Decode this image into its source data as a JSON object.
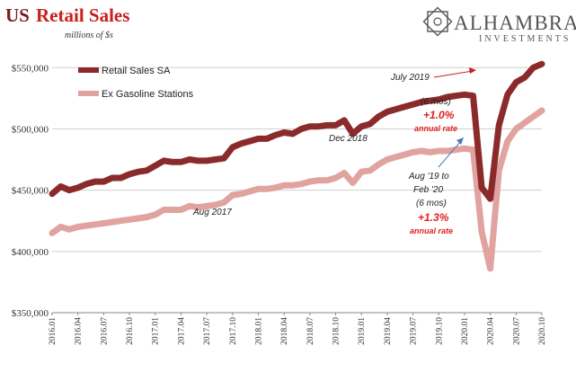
{
  "header": {
    "title_prefix": "US",
    "title_main": "Retail Sales",
    "units": "millions of $s"
  },
  "logo": {
    "name": "ALHAMBRA",
    "sub": "INVESTMENTS",
    "icon": "geometric-star-icon"
  },
  "colors": {
    "series1": "#8b2a2a",
    "series2": "#e0a3a0",
    "annotation_red": "#e0201c",
    "grid": "#cfcfcf"
  },
  "annotations": {
    "july2019": "July 2019",
    "six_mos_1": "(6 mos)",
    "rate1": "+1.0%",
    "annual_rate_1": "annual rate",
    "dec2018": "Dec 2018",
    "aug2017": "Aug 2017",
    "aug19_line1": "Aug '19 to",
    "aug19_line2": "Feb '20",
    "six_mos_2": "(6 mos)",
    "rate2": "+1.3%",
    "annual_rate_2": "annual rate"
  },
  "chart_data": {
    "type": "line",
    "title": "US Retail Sales",
    "ylabel": "millions of $s",
    "ylim": [
      350000,
      570000
    ],
    "yticks": [
      350000,
      400000,
      450000,
      500000,
      550000
    ],
    "ytick_labels": [
      "$350,000",
      "$400,000",
      "$450,000",
      "$500,000",
      "$550,000"
    ],
    "xtick_labels": [
      "2016.01",
      "2016.04",
      "2016.07",
      "2016.10",
      "2017.01",
      "2017.04",
      "2017.07",
      "2017.10",
      "2018.01",
      "2018.04",
      "2018.07",
      "2018.10",
      "2019.01",
      "2019.04",
      "2019.07",
      "2019.10",
      "2020.01",
      "2020.04",
      "2020.07",
      "2020.10"
    ],
    "legend_position": "top-left",
    "grid": true,
    "x": [
      "2016.01",
      "2016.02",
      "2016.03",
      "2016.04",
      "2016.05",
      "2016.06",
      "2016.07",
      "2016.08",
      "2016.09",
      "2016.10",
      "2016.11",
      "2016.12",
      "2017.01",
      "2017.02",
      "2017.03",
      "2017.04",
      "2017.05",
      "2017.06",
      "2017.07",
      "2017.08",
      "2017.09",
      "2017.10",
      "2017.11",
      "2017.12",
      "2018.01",
      "2018.02",
      "2018.03",
      "2018.04",
      "2018.05",
      "2018.06",
      "2018.07",
      "2018.08",
      "2018.09",
      "2018.10",
      "2018.11",
      "2018.12",
      "2019.01",
      "2019.02",
      "2019.03",
      "2019.04",
      "2019.05",
      "2019.06",
      "2019.07",
      "2019.08",
      "2019.09",
      "2019.10",
      "2019.11",
      "2019.12",
      "2020.01",
      "2020.02",
      "2020.03",
      "2020.04",
      "2020.05",
      "2020.06",
      "2020.07",
      "2020.08",
      "2020.09",
      "2020.10"
    ],
    "series": [
      {
        "name": "Retail Sales SA",
        "values": [
          447000,
          453000,
          450000,
          452000,
          455000,
          457000,
          457000,
          460000,
          460000,
          463000,
          465000,
          466000,
          470000,
          474000,
          473000,
          473000,
          475000,
          474000,
          474000,
          475000,
          476000,
          485000,
          488000,
          490000,
          492000,
          492000,
          495000,
          497000,
          496000,
          500000,
          502000,
          502000,
          503000,
          503000,
          507000,
          496000,
          502000,
          504000,
          510000,
          514000,
          516000,
          518000,
          520000,
          522000,
          523000,
          524000,
          526000,
          527000,
          528000,
          527000,
          452000,
          443000,
          503000,
          528000,
          538000,
          542000,
          550000,
          553000
        ]
      },
      {
        "name": "Ex Gasoline Stations",
        "values": [
          415000,
          420000,
          418000,
          420000,
          421000,
          422000,
          423000,
          424000,
          425000,
          426000,
          427000,
          428000,
          430000,
          434000,
          434000,
          434000,
          437000,
          436000,
          437000,
          438000,
          440000,
          446000,
          447000,
          449000,
          451000,
          451000,
          452000,
          454000,
          454000,
          455000,
          457000,
          458000,
          458000,
          460000,
          464000,
          456000,
          465000,
          466000,
          471000,
          475000,
          477000,
          479000,
          481000,
          482000,
          481000,
          482000,
          482000,
          483000,
          484000,
          483000,
          416000,
          386000,
          466000,
          490000,
          500000,
          505000,
          510000,
          515000
        ]
      }
    ]
  }
}
